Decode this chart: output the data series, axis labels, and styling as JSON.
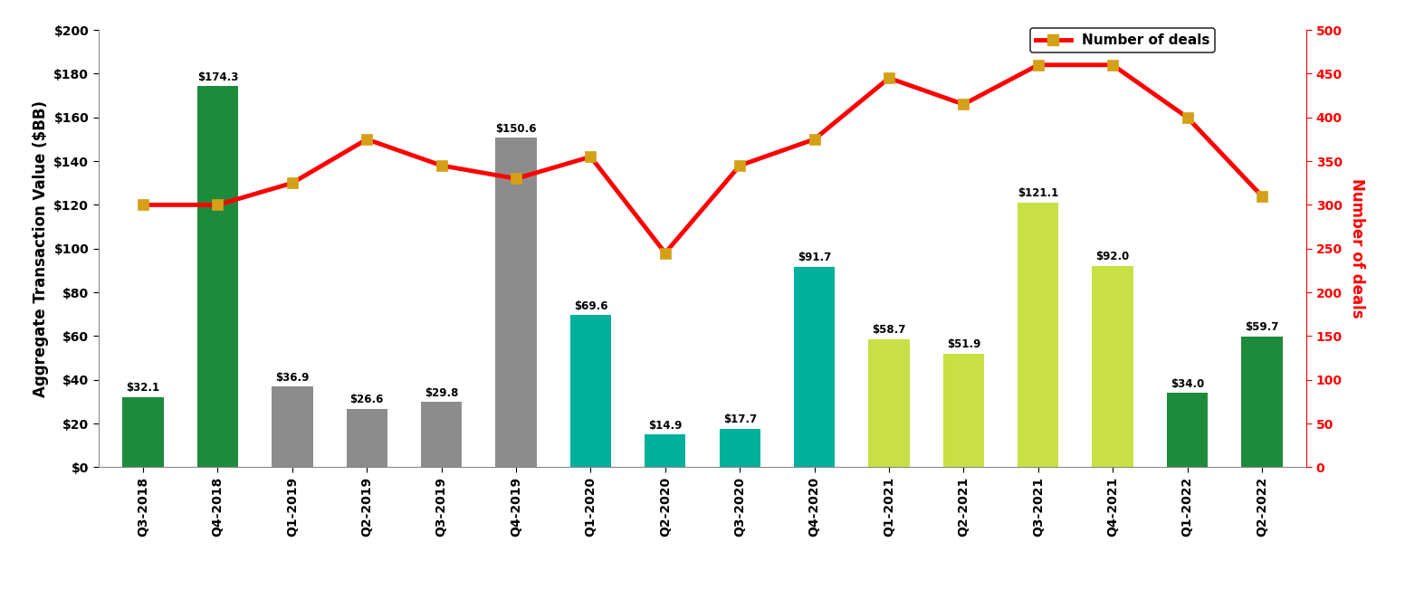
{
  "categories": [
    "Q3-2018",
    "Q4-2018",
    "Q1-2019",
    "Q2-2019",
    "Q3-2019",
    "Q4-2019",
    "Q1-2020",
    "Q2-2020",
    "Q3-2020",
    "Q4-2020",
    "Q1-2021",
    "Q2-2021",
    "Q3-2021",
    "Q4-2021",
    "Q1-2022",
    "Q2-2022"
  ],
  "bar_values": [
    32.1,
    174.3,
    36.9,
    26.6,
    29.8,
    150.6,
    69.6,
    14.9,
    17.7,
    91.7,
    58.7,
    51.9,
    121.1,
    92.0,
    34.0,
    59.7
  ],
  "bar_colors": [
    "#1e8b3c",
    "#1e8b3c",
    "#8c8c8c",
    "#8c8c8c",
    "#8c8c8c",
    "#8c8c8c",
    "#00b09b",
    "#00b09b",
    "#00b09b",
    "#00b09b",
    "#c8e044",
    "#c8e044",
    "#c8e044",
    "#c8e044",
    "#1e8b3c",
    "#1e8b3c"
  ],
  "deal_counts": [
    300,
    300,
    325,
    375,
    345,
    330,
    355,
    245,
    345,
    375,
    445,
    415,
    460,
    460,
    400,
    310
  ],
  "ylabel_left": "Aggregate Transaction Value ($BB)",
  "ylabel_right": "Number of deals",
  "ylim_left": [
    0,
    200
  ],
  "ylim_right": [
    0,
    500
  ],
  "yticks_left": [
    0,
    20,
    40,
    60,
    80,
    100,
    120,
    140,
    160,
    180,
    200
  ],
  "yticks_right": [
    0,
    50,
    100,
    150,
    200,
    250,
    300,
    350,
    400,
    450,
    500
  ],
  "ytick_labels_left": [
    "$0",
    "$20",
    "$40",
    "$60",
    "$80",
    "$100",
    "$120",
    "$140",
    "$160",
    "$180",
    "$200"
  ],
  "ytick_labels_right": [
    "0",
    "50",
    "100",
    "150",
    "200",
    "250",
    "300",
    "350",
    "400",
    "450",
    "500"
  ],
  "line_color": "#ff0000",
  "line_marker_facecolor": "#d4a017",
  "line_marker_edgecolor": "#d4a017",
  "line_width": 3.5,
  "marker_size": 9,
  "bar_value_labels": [
    "$32.1",
    "$174.3",
    "$36.9",
    "$26.6",
    "$29.8",
    "$150.6",
    "$69.6",
    "$14.9",
    "$17.7",
    "$91.7",
    "$58.7",
    "$51.9",
    "$121.1",
    "$92.0",
    "$34.0",
    "$59.7"
  ],
  "legend_label": "Number of deals",
  "background_color": "#ffffff",
  "value_label_fontsize": 8.5,
  "axis_label_fontsize": 12,
  "tick_fontsize": 10,
  "legend_fontsize": 11
}
